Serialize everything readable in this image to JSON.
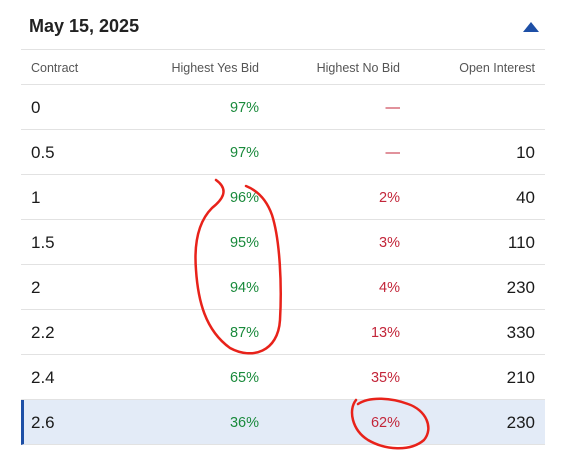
{
  "header": {
    "date": "May 15, 2025",
    "toggle_icon": "chevron-up-icon"
  },
  "columns": {
    "contract": "Contract",
    "yes": "Highest Yes Bid",
    "no": "Highest No Bid",
    "oi": "Open Interest"
  },
  "rows": [
    {
      "contract": "0",
      "yes": "97%",
      "no": "—",
      "oi": ""
    },
    {
      "contract": "0.5",
      "yes": "97%",
      "no": "—",
      "oi": "10"
    },
    {
      "contract": "1",
      "yes": "96%",
      "no": "2%",
      "oi": "40"
    },
    {
      "contract": "1.5",
      "yes": "95%",
      "no": "3%",
      "oi": "110"
    },
    {
      "contract": "2",
      "yes": "94%",
      "no": "4%",
      "oi": "230"
    },
    {
      "contract": "2.2",
      "yes": "87%",
      "no": "13%",
      "oi": "330"
    },
    {
      "contract": "2.4",
      "yes": "65%",
      "no": "35%",
      "oi": "210"
    },
    {
      "contract": "2.6",
      "yes": "36%",
      "no": "62%",
      "oi": "230"
    }
  ],
  "colors": {
    "yes": "#1a8a3c",
    "no": "#c3263a",
    "accent": "#1d4fa6",
    "annotation": "#e8221a"
  }
}
